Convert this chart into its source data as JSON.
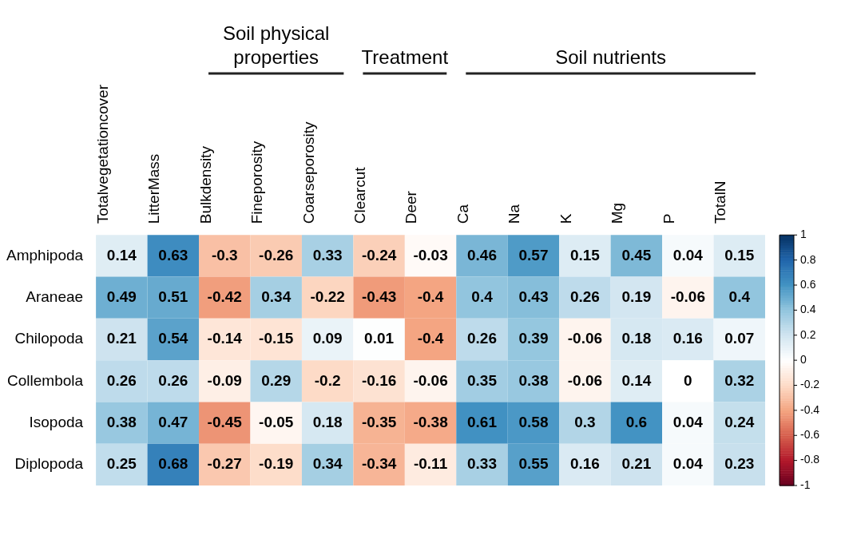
{
  "chart_data": {
    "type": "heatmap",
    "categories": [
      "Totalvegetationcover",
      "LitterMass",
      "Bulkdensity",
      "Fineporosity",
      "Coarseporosity",
      "Clearcut",
      "Deer",
      "Ca",
      "Na",
      "K",
      "Mg",
      "P",
      "TotalN"
    ],
    "y_categories": [
      "Amphipoda",
      "Araneae",
      "Chilopoda",
      "Collembola",
      "Isopoda",
      "Diplopoda"
    ],
    "cells": [
      [
        0.14,
        0.63,
        -0.3,
        -0.26,
        0.33,
        -0.24,
        -0.03,
        0.46,
        0.57,
        0.15,
        0.45,
        0.04,
        0.15
      ],
      [
        0.49,
        0.51,
        -0.42,
        0.34,
        -0.22,
        -0.43,
        -0.4,
        0.4,
        0.43,
        0.26,
        0.19,
        -0.06,
        0.4
      ],
      [
        0.21,
        0.54,
        -0.14,
        -0.15,
        0.09,
        0.01,
        -0.4,
        0.26,
        0.39,
        -0.06,
        0.18,
        0.16,
        0.07
      ],
      [
        0.26,
        0.26,
        -0.09,
        0.29,
        -0.2,
        -0.16,
        -0.06,
        0.35,
        0.38,
        -0.06,
        0.14,
        0,
        0.32
      ],
      [
        0.38,
        0.47,
        -0.45,
        -0.05,
        0.18,
        -0.35,
        -0.38,
        0.61,
        0.58,
        0.3,
        0.6,
        0.04,
        0.24
      ],
      [
        0.25,
        0.68,
        -0.27,
        -0.19,
        0.34,
        -0.34,
        -0.11,
        0.33,
        0.55,
        0.16,
        0.21,
        0.04,
        0.23
      ]
    ],
    "clim": [
      -1,
      1
    ],
    "cticks": [
      -1,
      -0.8,
      -0.6,
      -0.4,
      -0.2,
      0,
      0.2,
      0.4,
      0.6,
      0.8,
      1
    ],
    "data_labels": true,
    "annotations": [
      "Soil physical properties",
      "Treatment",
      "Soil nutrients"
    ]
  }
}
